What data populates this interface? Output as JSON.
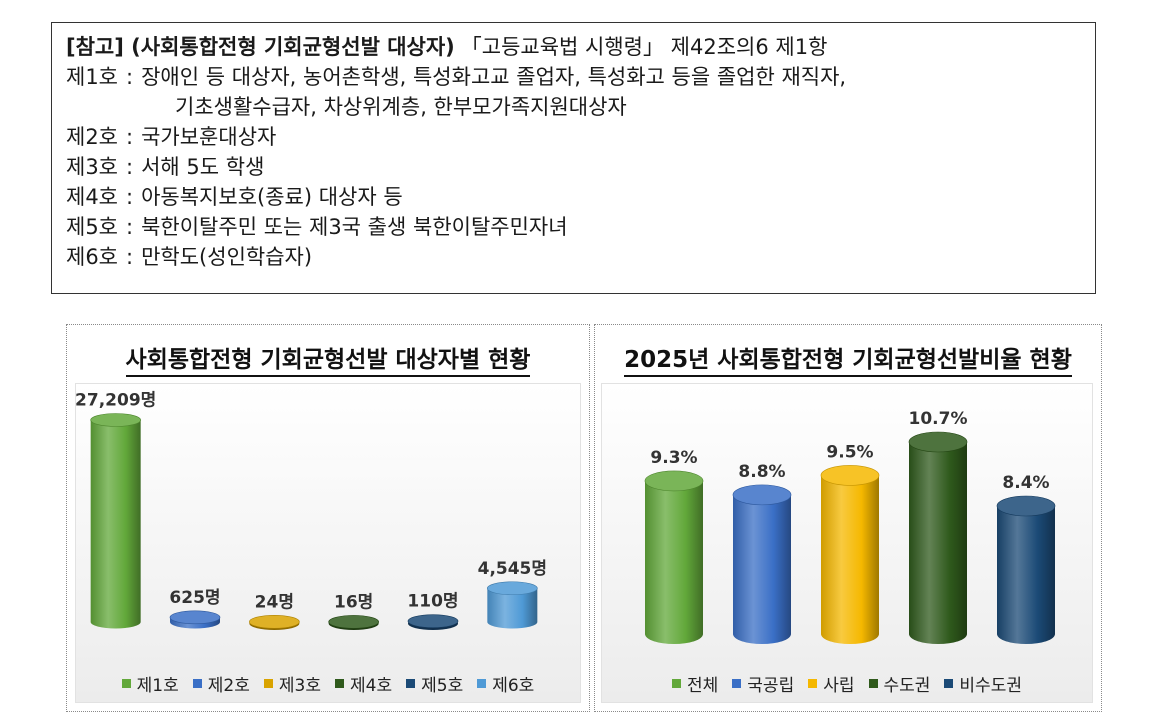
{
  "reference": {
    "title": "[참고] (사회통합전형 기회균형선발 대상자)",
    "law": "「고등교육법 시행령」 제42조의6 제1항",
    "items": [
      {
        "num": "제1호",
        "sep": ":",
        "text": "장애인 등 대상자, 농어촌학생, 특성화고교 졸업자, 특성화고 등을 졸업한 재직자,",
        "cont": "기초생활수급자, 차상위계층, 한부모가족지원대상자"
      },
      {
        "num": "제2호",
        "sep": ":",
        "text": "국가보훈대상자"
      },
      {
        "num": "제3호",
        "sep": ":",
        "text": "서해 5도 학생"
      },
      {
        "num": "제4호",
        "sep": ":",
        "text": "아동복지보호(종료) 대상자 등"
      },
      {
        "num": "제5호",
        "sep": ":",
        "text": "북한이탈주민 또는 제3국 출생 북한이탈주민자녀"
      },
      {
        "num": "제6호",
        "sep": ":",
        "text": "만학도(성인학습자)"
      }
    ]
  },
  "chart_data": [
    {
      "type": "bar",
      "title": "사회통합전형 기회균형선발 대상자별 현황",
      "categories": [
        "제1호",
        "제2호",
        "제3호",
        "제4호",
        "제5호",
        "제6호"
      ],
      "values": [
        27209,
        625,
        24,
        16,
        110,
        4545
      ],
      "data_labels": [
        "27,209명",
        "625명",
        "24명",
        "16명",
        "110명",
        "4,545명"
      ],
      "colors": [
        "#62a83a",
        "#3a6fc6",
        "#d9a300",
        "#2f5a1c",
        "#1b4a76",
        "#4f9ad6"
      ],
      "legend": [
        "제1호",
        "제2호",
        "제3호",
        "제4호",
        "제5호",
        "제6호"
      ],
      "legend_position": "bottom",
      "bar_shape": "cylinder",
      "grid": false
    },
    {
      "type": "bar",
      "title": "2025년 사회통합전형 기회균형선발비율 현황",
      "categories": [
        "전체",
        "국공립",
        "사립",
        "수도권",
        "비수도권"
      ],
      "values": [
        9.3,
        8.8,
        9.5,
        10.7,
        8.4
      ],
      "data_labels": [
        "9.3%",
        "8.8%",
        "9.5%",
        "10.7%",
        "8.4%"
      ],
      "colors": [
        "#62a83a",
        "#3a6fc6",
        "#f5b800",
        "#2f5a1c",
        "#1b4a76"
      ],
      "legend": [
        "전체",
        "국공립",
        "사립",
        "수도권",
        "비수도권"
      ],
      "legend_position": "bottom",
      "bar_shape": "cylinder",
      "grid": false
    }
  ]
}
